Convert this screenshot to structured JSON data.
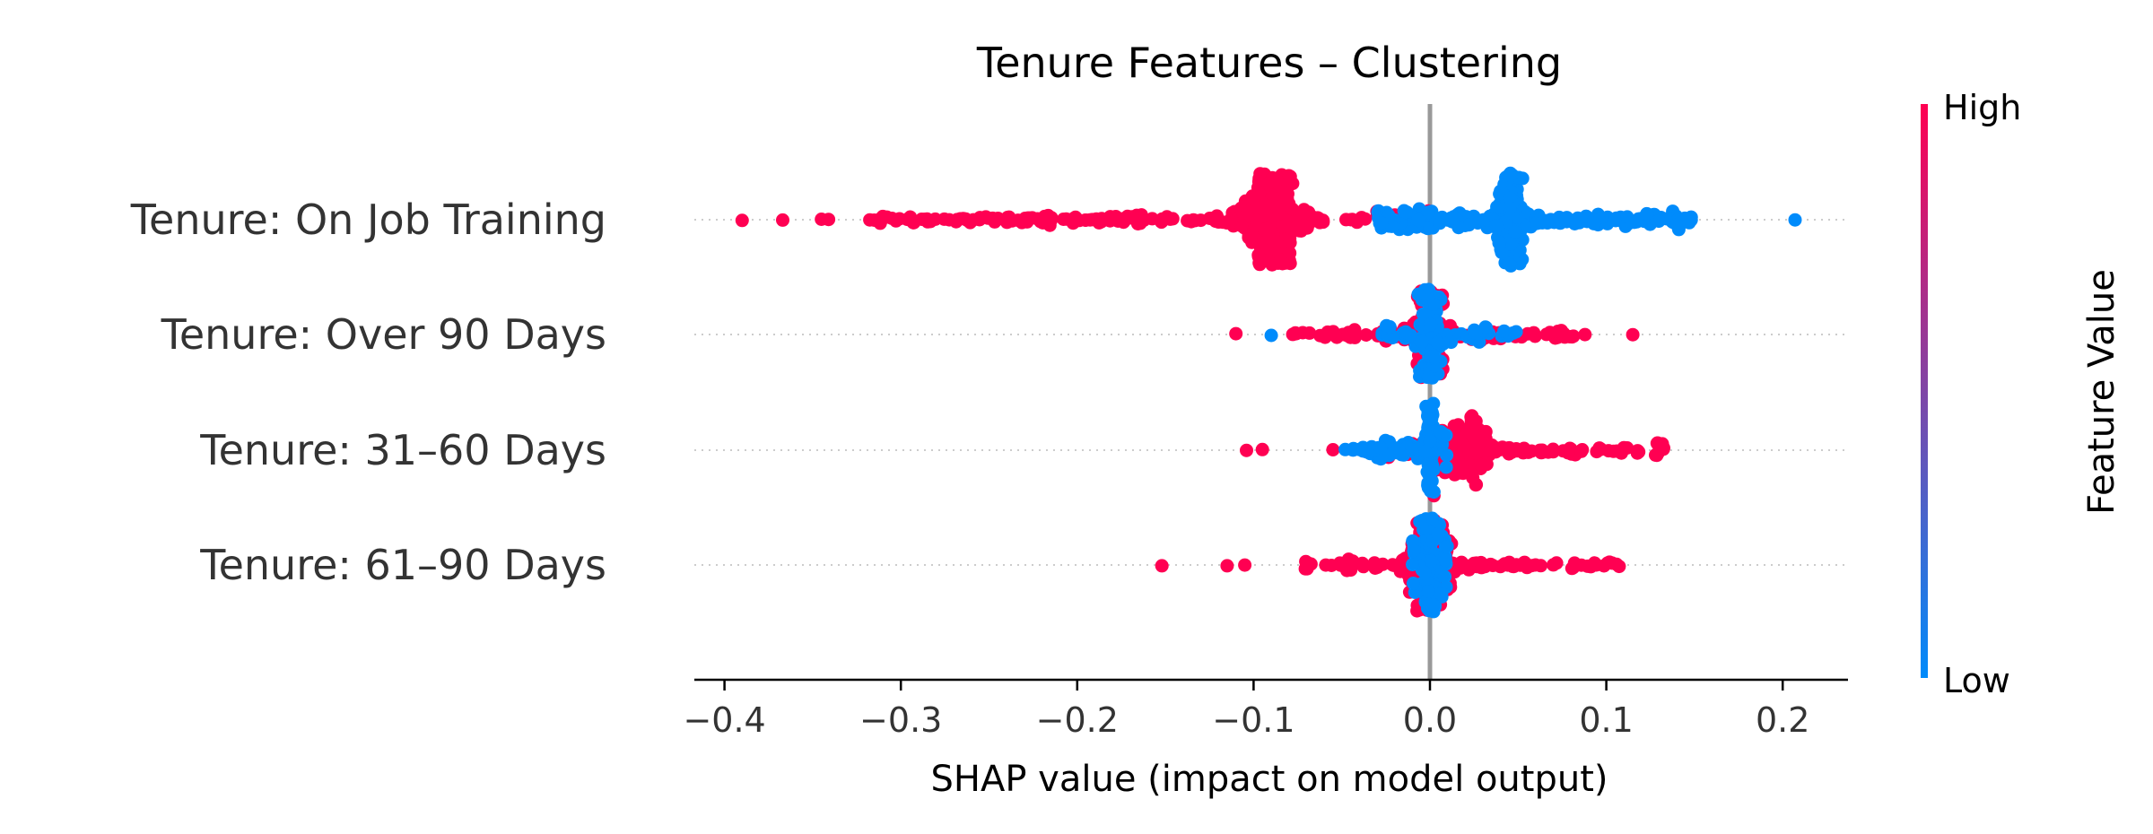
{
  "chart_data": {
    "type": "scatter",
    "subtype": "shap-beeswarm",
    "title": "Tenure Features – Clustering",
    "xlabel": "SHAP value (impact on model output)",
    "xlim": [
      -0.425,
      0.235
    ],
    "xticks": [
      -0.4,
      -0.3,
      -0.2,
      -0.1,
      0.0,
      0.1,
      0.2
    ],
    "xtick_labels": [
      "−0.4",
      "−0.3",
      "−0.2",
      "−0.1",
      "0.0",
      "0.1",
      "0.2"
    ],
    "grid": false,
    "features": [
      {
        "name": "Tenure: On Job Training",
        "high_range": [
          -0.32,
          0.0
        ],
        "low_range": [
          -0.03,
          0.15
        ],
        "dense_center": 0.045,
        "high_outliers": [
          -0.39,
          -0.367,
          -0.345,
          -0.341
        ],
        "low_outliers": [
          0.14,
          0.147,
          0.207
        ]
      },
      {
        "name": "Tenure: Over 90 Days",
        "high_range": [
          -0.08,
          0.088
        ],
        "low_range": [
          -0.03,
          0.05
        ],
        "dense_center": 0.0,
        "high_outliers": [
          -0.11,
          0.115
        ],
        "low_outliers": [
          -0.09
        ]
      },
      {
        "name": "Tenure: 31–60 Days",
        "high_range": [
          -0.03,
          0.135
        ],
        "low_range": [
          -0.045,
          0.01
        ],
        "dense_center": 0.0,
        "high_outliers": [
          -0.104,
          -0.095,
          -0.055
        ],
        "low_outliers": [
          -0.048
        ]
      },
      {
        "name": "Tenure: 61–90 Days",
        "high_range": [
          -0.075,
          0.11
        ],
        "low_range": [
          -0.01,
          0.01
        ],
        "dense_center": 0.0,
        "high_outliers": [
          -0.152,
          -0.115,
          -0.105
        ],
        "low_outliers": []
      }
    ],
    "colorbar": {
      "label": "Feature Value",
      "high_label": "High",
      "low_label": "Low",
      "high_color": "#ff0052",
      "low_color": "#008bfb"
    }
  }
}
